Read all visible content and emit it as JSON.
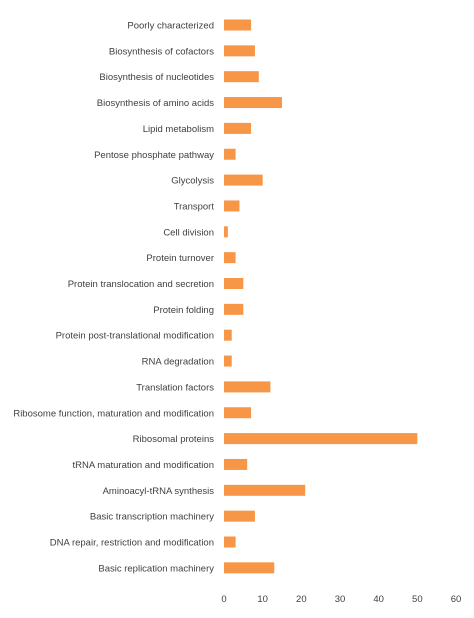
{
  "chart_data": {
    "type": "bar",
    "orientation": "horizontal",
    "title": "",
    "xlabel": "",
    "ylabel": "",
    "xlim": [
      0,
      60
    ],
    "x_ticks": [
      0,
      10,
      20,
      30,
      40,
      50,
      60
    ],
    "grid": false,
    "legend": "none",
    "bar_color": "#F79646",
    "categories": [
      "Poorly characterized",
      "Biosynthesis of cofactors",
      "Biosynthesis of nucleotides",
      "Biosynthesis of amino acids",
      "Lipid metabolism",
      "Pentose phosphate pathway",
      "Glycolysis",
      "Transport",
      "Cell division",
      "Protein turnover",
      "Protein translocation and secretion",
      "Protein folding",
      "Protein post-translational modification",
      "RNA degradation",
      "Translation factors",
      "Ribosome function, maturation and modification",
      "Ribosomal proteins",
      "tRNA maturation and modification",
      "Aminoacyl-tRNA synthesis",
      "Basic transcription machinery",
      "DNA repair, restriction and modification",
      "Basic replication machinery"
    ],
    "values": [
      7,
      8,
      9,
      15,
      7,
      3,
      10,
      4,
      1,
      3,
      5,
      5,
      2,
      2,
      12,
      7,
      50,
      6,
      21,
      8,
      3,
      13
    ]
  }
}
